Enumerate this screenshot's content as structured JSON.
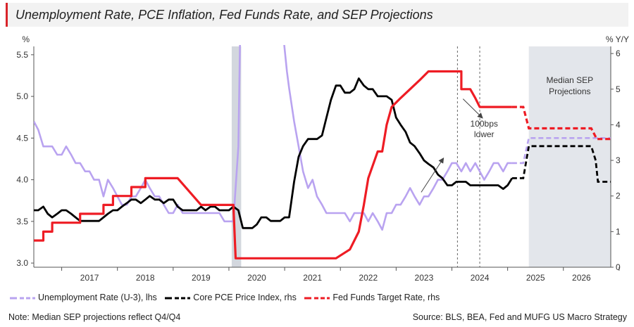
{
  "title": "Unemployment Rate, PCE Inflation, Fed Funds Rate, and SEP Projections",
  "colors": {
    "title_accent": "#d9242a",
    "unemployment": "#b9a3f0",
    "core_pce": "#000000",
    "fed_funds": "#ee1c24",
    "shade": "#e3e6eb",
    "grid_axis": "#555555"
  },
  "chart_data": {
    "type": "line",
    "left_axis": {
      "unit_label": "%",
      "range": [
        2.95,
        5.6
      ],
      "ticks": [
        "3.0",
        "3.5",
        "4.0",
        "4.5",
        "5.0",
        "5.5"
      ]
    },
    "right_axis": {
      "unit_label": "% Y/Y",
      "range": [
        0,
        6.2
      ],
      "ticks": [
        "0",
        "1",
        "2",
        "3",
        "4",
        "5",
        "6"
      ]
    },
    "x_axis": {
      "range": [
        2016.5,
        2026.85
      ],
      "year_labels": [
        "2017",
        "2018",
        "2019",
        "2020",
        "2021",
        "2022",
        "2023",
        "2024",
        "2025",
        "2026"
      ]
    },
    "recession_shading": [
      2020.05,
      2020.22
    ],
    "sep_shading": [
      2025.38,
      2026.85
    ],
    "sep_label_line1": "Median SEP",
    "sep_label_line2": "Projections",
    "vertical_dashed_lines": [
      2024.1,
      2024.5
    ],
    "annotation_line1": "100bps",
    "annotation_line2": "lower",
    "series": [
      {
        "name": "Unemployment Rate (U-3), lhs",
        "axis": "left",
        "points": [
          [
            2016.5,
            4.7
          ],
          [
            2016.58,
            4.6
          ],
          [
            2016.67,
            4.4
          ],
          [
            2016.83,
            4.4
          ],
          [
            2016.92,
            4.3
          ],
          [
            2017.0,
            4.3
          ],
          [
            2017.08,
            4.4
          ],
          [
            2017.17,
            4.3
          ],
          [
            2017.25,
            4.2
          ],
          [
            2017.33,
            4.2
          ],
          [
            2017.42,
            4.1
          ],
          [
            2017.5,
            4.1
          ],
          [
            2017.58,
            4.0
          ],
          [
            2017.67,
            4.0
          ],
          [
            2017.75,
            3.8
          ],
          [
            2017.83,
            4.0
          ],
          [
            2017.92,
            3.9
          ],
          [
            2018.0,
            3.8
          ],
          [
            2018.08,
            3.7
          ],
          [
            2018.17,
            3.7
          ],
          [
            2018.25,
            3.8
          ],
          [
            2018.33,
            3.8
          ],
          [
            2018.42,
            3.9
          ],
          [
            2018.5,
            4.0
          ],
          [
            2018.58,
            3.9
          ],
          [
            2018.67,
            3.8
          ],
          [
            2018.75,
            3.8
          ],
          [
            2018.83,
            3.7
          ],
          [
            2018.92,
            3.6
          ],
          [
            2019.0,
            3.6
          ],
          [
            2019.08,
            3.7
          ],
          [
            2019.17,
            3.6
          ],
          [
            2019.25,
            3.6
          ],
          [
            2019.33,
            3.6
          ],
          [
            2019.42,
            3.6
          ],
          [
            2019.5,
            3.6
          ],
          [
            2019.58,
            3.6
          ],
          [
            2019.67,
            3.6
          ],
          [
            2019.75,
            3.6
          ],
          [
            2019.83,
            3.6
          ],
          [
            2019.92,
            3.5
          ],
          [
            2020.0,
            3.5
          ],
          [
            2020.08,
            3.5
          ],
          [
            2020.17,
            4.4
          ],
          [
            2020.2,
            5.7
          ]
        ],
        "points_b": [
          [
            2020.98,
            5.7
          ],
          [
            2021.04,
            5.3
          ],
          [
            2021.08,
            5.1
          ],
          [
            2021.17,
            4.7
          ],
          [
            2021.25,
            4.4
          ],
          [
            2021.33,
            4.1
          ],
          [
            2021.42,
            3.9
          ],
          [
            2021.5,
            4.0
          ],
          [
            2021.58,
            3.8
          ],
          [
            2021.67,
            3.7
          ],
          [
            2021.75,
            3.6
          ],
          [
            2021.83,
            3.6
          ],
          [
            2021.92,
            3.6
          ],
          [
            2022.0,
            3.6
          ],
          [
            2022.08,
            3.6
          ],
          [
            2022.17,
            3.5
          ],
          [
            2022.25,
            3.6
          ],
          [
            2022.33,
            3.6
          ],
          [
            2022.42,
            3.6
          ],
          [
            2022.5,
            3.5
          ],
          [
            2022.58,
            3.6
          ],
          [
            2022.67,
            3.5
          ],
          [
            2022.75,
            3.4
          ],
          [
            2022.83,
            3.6
          ],
          [
            2022.92,
            3.6
          ],
          [
            2023.0,
            3.7
          ],
          [
            2023.08,
            3.7
          ],
          [
            2023.17,
            3.8
          ],
          [
            2023.25,
            3.9
          ],
          [
            2023.33,
            3.8
          ],
          [
            2023.42,
            3.7
          ],
          [
            2023.5,
            3.8
          ],
          [
            2023.58,
            3.8
          ],
          [
            2023.67,
            3.9
          ],
          [
            2023.75,
            4.0
          ],
          [
            2023.83,
            4.0
          ],
          [
            2023.92,
            4.1
          ],
          [
            2024.0,
            4.2
          ],
          [
            2024.08,
            4.2
          ],
          [
            2024.17,
            4.1
          ],
          [
            2024.25,
            4.2
          ],
          [
            2024.33,
            4.1
          ],
          [
            2024.42,
            4.2
          ],
          [
            2024.5,
            4.1
          ],
          [
            2024.58,
            4.0
          ],
          [
            2024.67,
            4.1
          ],
          [
            2024.75,
            4.2
          ],
          [
            2024.83,
            4.2
          ],
          [
            2024.92,
            4.1
          ],
          [
            2025.0,
            4.2
          ],
          [
            2025.08,
            4.2
          ]
        ],
        "projection": [
          [
            2025.08,
            4.2
          ],
          [
            2025.2,
            4.2
          ],
          [
            2025.28,
            4.2
          ],
          [
            2025.38,
            4.5
          ],
          [
            2025.44,
            4.5
          ],
          [
            2025.5,
            4.5
          ],
          [
            2025.6,
            4.5
          ],
          [
            2025.7,
            4.5
          ],
          [
            2025.8,
            4.5
          ],
          [
            2026.2,
            4.5
          ],
          [
            2026.5,
            4.5
          ],
          [
            2026.6,
            4.5
          ],
          [
            2026.85,
            4.5
          ]
        ]
      },
      {
        "name": "Core PCE Price Index, rhs",
        "axis": "right",
        "points": [
          [
            2016.5,
            1.6
          ],
          [
            2016.58,
            1.6
          ],
          [
            2016.67,
            1.7
          ],
          [
            2016.75,
            1.5
          ],
          [
            2016.83,
            1.4
          ],
          [
            2016.92,
            1.5
          ],
          [
            2017.0,
            1.6
          ],
          [
            2017.08,
            1.6
          ],
          [
            2017.17,
            1.5
          ],
          [
            2017.25,
            1.4
          ],
          [
            2017.33,
            1.3
          ],
          [
            2017.42,
            1.3
          ],
          [
            2017.5,
            1.3
          ],
          [
            2017.58,
            1.3
          ],
          [
            2017.67,
            1.3
          ],
          [
            2017.75,
            1.4
          ],
          [
            2017.83,
            1.5
          ],
          [
            2017.92,
            1.6
          ],
          [
            2018.0,
            1.6
          ],
          [
            2018.08,
            1.7
          ],
          [
            2018.17,
            1.8
          ],
          [
            2018.25,
            1.9
          ],
          [
            2018.33,
            1.9
          ],
          [
            2018.42,
            1.8
          ],
          [
            2018.5,
            1.9
          ],
          [
            2018.58,
            2.0
          ],
          [
            2018.67,
            1.9
          ],
          [
            2018.75,
            1.9
          ],
          [
            2018.83,
            1.8
          ],
          [
            2018.92,
            1.9
          ],
          [
            2019.0,
            1.9
          ],
          [
            2019.08,
            1.7
          ],
          [
            2019.17,
            1.6
          ],
          [
            2019.25,
            1.6
          ],
          [
            2019.33,
            1.6
          ],
          [
            2019.42,
            1.6
          ],
          [
            2019.5,
            1.7
          ],
          [
            2019.58,
            1.6
          ],
          [
            2019.67,
            1.7
          ],
          [
            2019.75,
            1.7
          ],
          [
            2019.83,
            1.6
          ],
          [
            2019.92,
            1.6
          ],
          [
            2020.0,
            1.6
          ],
          [
            2020.08,
            1.7
          ],
          [
            2020.17,
            1.6
          ],
          [
            2020.25,
            1.1
          ],
          [
            2020.33,
            1.1
          ],
          [
            2020.42,
            1.1
          ],
          [
            2020.5,
            1.2
          ],
          [
            2020.58,
            1.4
          ],
          [
            2020.67,
            1.4
          ],
          [
            2020.75,
            1.3
          ],
          [
            2020.83,
            1.3
          ],
          [
            2020.92,
            1.3
          ],
          [
            2021.0,
            1.4
          ],
          [
            2021.08,
            1.4
          ],
          [
            2021.17,
            2.4
          ],
          [
            2021.25,
            3.1
          ],
          [
            2021.33,
            3.4
          ],
          [
            2021.42,
            3.6
          ],
          [
            2021.5,
            3.6
          ],
          [
            2021.58,
            3.6
          ],
          [
            2021.67,
            3.7
          ],
          [
            2021.75,
            4.2
          ],
          [
            2021.83,
            4.7
          ],
          [
            2021.92,
            5.1
          ],
          [
            2022.0,
            5.1
          ],
          [
            2022.08,
            4.9
          ],
          [
            2022.17,
            4.9
          ],
          [
            2022.25,
            5.0
          ],
          [
            2022.33,
            5.3
          ],
          [
            2022.42,
            5.1
          ],
          [
            2022.5,
            5.0
          ],
          [
            2022.58,
            5.0
          ],
          [
            2022.67,
            4.8
          ],
          [
            2022.75,
            4.8
          ],
          [
            2022.83,
            4.8
          ],
          [
            2022.92,
            4.7
          ],
          [
            2023.0,
            4.2
          ],
          [
            2023.08,
            4.0
          ],
          [
            2023.17,
            3.8
          ],
          [
            2023.25,
            3.5
          ],
          [
            2023.33,
            3.4
          ],
          [
            2023.42,
            3.2
          ],
          [
            2023.5,
            3.0
          ],
          [
            2023.58,
            2.9
          ],
          [
            2023.67,
            2.8
          ],
          [
            2023.75,
            2.6
          ],
          [
            2023.83,
            2.5
          ],
          [
            2023.92,
            2.3
          ],
          [
            2024.0,
            2.3
          ],
          [
            2024.08,
            2.4
          ],
          [
            2024.17,
            2.4
          ],
          [
            2024.25,
            2.4
          ],
          [
            2024.33,
            2.3
          ],
          [
            2024.42,
            2.3
          ],
          [
            2024.5,
            2.3
          ],
          [
            2024.58,
            2.3
          ],
          [
            2024.67,
            2.3
          ],
          [
            2024.75,
            2.3
          ],
          [
            2024.83,
            2.3
          ],
          [
            2024.92,
            2.2
          ],
          [
            2025.0,
            2.3
          ],
          [
            2025.08,
            2.5
          ]
        ],
        "projection": [
          [
            2025.08,
            2.5
          ],
          [
            2025.28,
            2.5
          ],
          [
            2025.38,
            3.4
          ],
          [
            2025.5,
            3.4
          ],
          [
            2025.7,
            3.4
          ],
          [
            2025.9,
            3.4
          ],
          [
            2026.1,
            3.4
          ],
          [
            2026.3,
            3.4
          ],
          [
            2026.5,
            3.4
          ],
          [
            2026.58,
            3.0
          ],
          [
            2026.62,
            2.4
          ],
          [
            2026.85,
            2.4
          ]
        ]
      },
      {
        "name": "Fed Funds Target Rate, rhs",
        "axis": "right",
        "points": [
          [
            2016.5,
            0.75
          ],
          [
            2016.67,
            0.75
          ],
          [
            2016.67,
            1.0
          ],
          [
            2016.83,
            1.0
          ],
          [
            2016.83,
            1.25
          ],
          [
            2017.33,
            1.25
          ],
          [
            2017.33,
            1.5
          ],
          [
            2017.75,
            1.5
          ],
          [
            2017.75,
            1.75
          ],
          [
            2017.92,
            1.75
          ],
          [
            2017.92,
            2.0
          ],
          [
            2018.25,
            2.0
          ],
          [
            2018.25,
            2.25
          ],
          [
            2018.5,
            2.25
          ],
          [
            2018.5,
            2.5
          ],
          [
            2019.08,
            2.5
          ],
          [
            2019.5,
            1.75
          ],
          [
            2019.67,
            1.75
          ],
          [
            2020.08,
            1.75
          ],
          [
            2020.12,
            0.25
          ],
          [
            2021.08,
            0.25
          ],
          [
            2021.92,
            0.25
          ],
          [
            2022.17,
            0.5
          ],
          [
            2022.33,
            1.0
          ],
          [
            2022.42,
            1.75
          ],
          [
            2022.5,
            2.5
          ],
          [
            2022.67,
            3.25
          ],
          [
            2022.75,
            3.25
          ],
          [
            2022.83,
            4.0
          ],
          [
            2022.92,
            4.5
          ],
          [
            2023.08,
            4.75
          ],
          [
            2023.25,
            5.0
          ],
          [
            2023.42,
            5.25
          ],
          [
            2023.58,
            5.5
          ],
          [
            2024.17,
            5.5
          ],
          [
            2024.17,
            5.0
          ],
          [
            2024.33,
            5.0
          ],
          [
            2024.42,
            4.75
          ],
          [
            2024.5,
            4.5
          ],
          [
            2024.6,
            4.5
          ],
          [
            2025.0,
            4.5
          ],
          [
            2025.08,
            4.5
          ]
        ],
        "projection": [
          [
            2025.08,
            4.5
          ],
          [
            2025.28,
            4.5
          ],
          [
            2025.38,
            3.9
          ],
          [
            2025.6,
            3.9
          ],
          [
            2026.0,
            3.9
          ],
          [
            2026.5,
            3.9
          ],
          [
            2026.6,
            3.6
          ],
          [
            2026.85,
            3.6
          ]
        ]
      }
    ],
    "arrows": [
      {
        "from": [
          2023.45,
          3.85
        ],
        "to": [
          2023.85,
          4.26
        ],
        "axis": "left"
      },
      {
        "from": [
          2024.2,
          4.97
        ],
        "to": [
          2024.55,
          4.74
        ],
        "axis": "left"
      }
    ]
  },
  "legend": {
    "unemployment": "Unemployment Rate (U-3), lhs",
    "core_pce": "Core PCE Price Index, rhs",
    "fed_funds": "Fed Funds Target Rate, rhs"
  },
  "footer": {
    "note": "Note: Median SEP projections reflect Q4/Q4",
    "source": "Source: BLS, BEA, Fed and MUFG US Macro Strategy"
  }
}
